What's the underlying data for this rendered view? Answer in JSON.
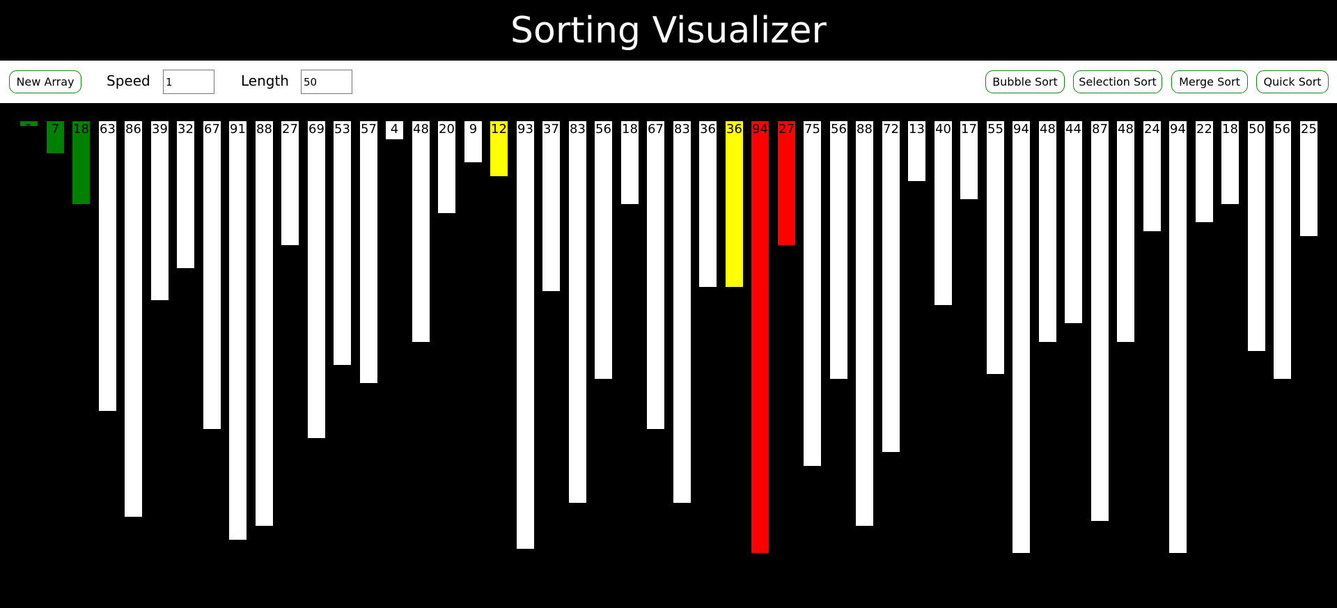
{
  "header": {
    "title": "Sorting Visualizer"
  },
  "toolbar": {
    "new_array_label": "New Array",
    "speed_label": "Speed",
    "speed_value": "1",
    "length_label": "Length",
    "length_value": "50",
    "bubble_sort_label": "Bubble Sort",
    "selection_sort_label": "Selection Sort",
    "merge_sort_label": "Merge Sort",
    "quick_sort_label": "Quick Sort"
  },
  "colors": {
    "default": "#ffffff",
    "sorted": "#008000",
    "pivot": "#ffff00",
    "compare": "#ff0000",
    "accent": "#0a8a0a"
  },
  "array": {
    "values": [
      1,
      7,
      18,
      63,
      86,
      39,
      32,
      67,
      91,
      88,
      27,
      69,
      53,
      57,
      4,
      48,
      20,
      9,
      12,
      93,
      37,
      83,
      56,
      18,
      67,
      83,
      36,
      36,
      94,
      27,
      75,
      56,
      88,
      72,
      13,
      40,
      17,
      55,
      94,
      48,
      44,
      87,
      48,
      24,
      94,
      22,
      18,
      50,
      56,
      25
    ],
    "states": [
      "sorted",
      "sorted",
      "sorted",
      "default",
      "default",
      "default",
      "default",
      "default",
      "default",
      "default",
      "default",
      "default",
      "default",
      "default",
      "default",
      "default",
      "default",
      "default",
      "pivot",
      "default",
      "default",
      "default",
      "default",
      "default",
      "default",
      "default",
      "default",
      "pivot",
      "compare",
      "compare",
      "default",
      "default",
      "default",
      "default",
      "default",
      "default",
      "default",
      "default",
      "default",
      "default",
      "default",
      "default",
      "default",
      "default",
      "default",
      "default",
      "default",
      "default",
      "default",
      "default"
    ]
  }
}
